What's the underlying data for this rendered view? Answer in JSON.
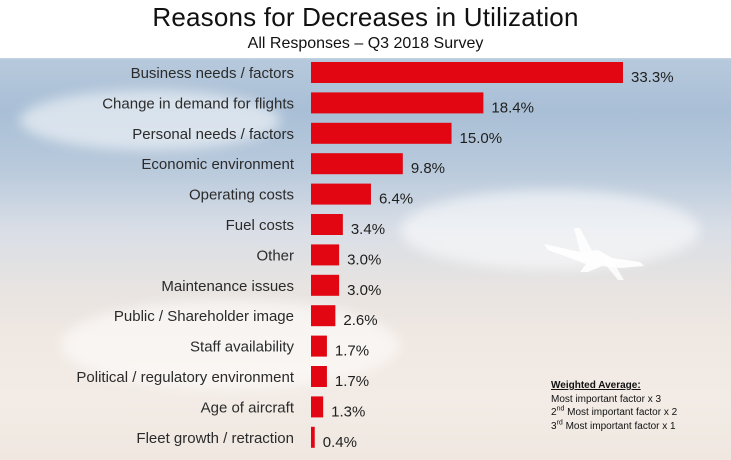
{
  "title": "Reasons for Decreases in Utilization",
  "subtitle": "All Responses – Q3 2018 Survey",
  "colors": {
    "bar": "#e20612",
    "background_sky": "#a9bfd6",
    "text": "#2b2b2b"
  },
  "chart_data": {
    "type": "bar",
    "orientation": "horizontal",
    "title": "Reasons for Decreases in Utilization",
    "subtitle": "All Responses – Q3 2018 Survey",
    "xlabel": "",
    "ylabel": "",
    "value_suffix": "%",
    "xlim": [
      0,
      33.3
    ],
    "grid": false,
    "legend": "none",
    "categories": [
      "Business needs / factors",
      "Change in demand for flights",
      "Personal needs / factors",
      "Economic environment",
      "Operating costs",
      "Fuel costs",
      "Other",
      "Maintenance issues",
      "Public / Shareholder image",
      "Staff availability",
      "Political / regulatory environment",
      "Age of aircraft",
      "Fleet growth / retraction"
    ],
    "values": [
      33.3,
      18.4,
      15.0,
      9.8,
      6.4,
      3.4,
      3.0,
      3.0,
      2.6,
      1.7,
      1.7,
      1.3,
      0.4
    ],
    "value_labels": [
      "33.3%",
      "18.4%",
      "15.0%",
      "9.8%",
      "6.4%",
      "3.4%",
      "3.0%",
      "3.0%",
      "2.6%",
      "1.7%",
      "1.7%",
      "1.3%",
      "0.4%"
    ]
  },
  "note": {
    "heading": "Weighted Average:",
    "line1": "Most important factor x 3",
    "line2_prefix": "2",
    "line2_sup": "nd",
    "line2_rest": " Most important factor x 2",
    "line3_prefix": "3",
    "line3_sup": "rd",
    "line3_rest": " Most important factor x 1"
  },
  "icons": {
    "decoration": "jet-airplane-icon"
  }
}
